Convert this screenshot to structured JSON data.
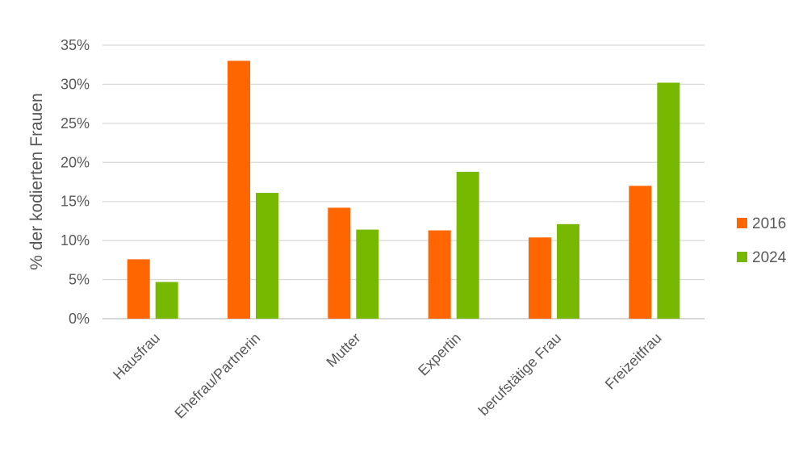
{
  "chart_data": {
    "type": "bar",
    "title": "",
    "xlabel": "",
    "ylabel": "% der kodierten Frauen",
    "ylim": [
      0,
      35
    ],
    "yticks": [
      0,
      5,
      10,
      15,
      20,
      25,
      30,
      35
    ],
    "ytick_suffix": "%",
    "grid": true,
    "legend_position": "right",
    "categories": [
      "Hausfrau",
      "Ehefrau/Partnerin",
      "Mutter",
      "Expertin",
      "berufstätige Frau",
      "Freizeitfrau"
    ],
    "series": [
      {
        "name": "2016",
        "color": "#ff6600",
        "values": [
          7.6,
          33.0,
          14.2,
          11.3,
          10.4,
          17.0
        ]
      },
      {
        "name": "2024",
        "color": "#77b800",
        "values": [
          4.7,
          16.1,
          11.4,
          18.8,
          12.1,
          30.2
        ]
      }
    ]
  }
}
